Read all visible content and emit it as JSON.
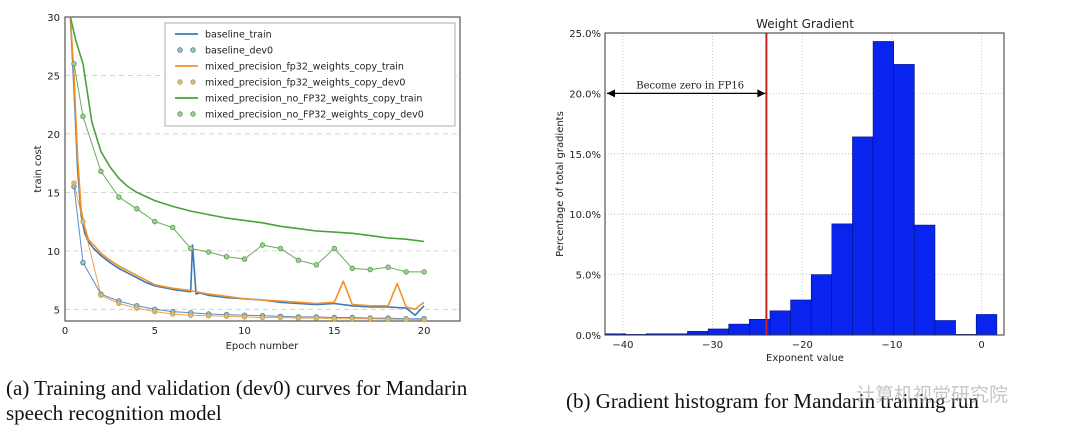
{
  "chart_data": [
    {
      "type": "line",
      "title": "",
      "xlabel": "Epoch number",
      "ylabel": "train cost",
      "xlim": [
        0,
        22
      ],
      "ylim": [
        4,
        30
      ],
      "xticks": [
        0,
        5,
        10,
        15,
        20
      ],
      "yticks": [
        5,
        10,
        15,
        20,
        25,
        30
      ],
      "grid": "horizontal-dashed",
      "legend_position": "top-right",
      "series": [
        {
          "name": "baseline_train",
          "kind": "line",
          "color": "#3b78b8",
          "x": [
            0.3,
            0.5,
            0.7,
            0.9,
            1.1,
            1.3,
            1.6,
            2,
            2.5,
            3,
            3.5,
            4,
            4.5,
            5,
            6,
            7,
            7.1,
            7.3,
            7.5,
            8,
            9,
            10,
            11,
            12,
            13,
            14,
            15,
            16,
            17,
            18,
            19,
            19.5,
            20
          ],
          "y": [
            30,
            24,
            17,
            13,
            11.5,
            10.8,
            10.2,
            9.6,
            9,
            8.5,
            8.1,
            7.7,
            7.3,
            7,
            6.7,
            6.5,
            10.5,
            6.3,
            6.4,
            6.2,
            6,
            5.9,
            5.8,
            5.6,
            5.5,
            5.4,
            5.5,
            5.3,
            5.2,
            5.2,
            5.1,
            4.5,
            5.3
          ]
        },
        {
          "name": "baseline_dev0",
          "kind": "markers",
          "color": "#3b78b8",
          "x": [
            0.5,
            1,
            2,
            3,
            4,
            5,
            6,
            7,
            8,
            9,
            10,
            11,
            12,
            13,
            14,
            15,
            16,
            17,
            18,
            19,
            20
          ],
          "y": [
            15.5,
            9,
            6.3,
            5.7,
            5.3,
            5.0,
            4.8,
            4.7,
            4.6,
            4.55,
            4.5,
            4.45,
            4.4,
            4.35,
            4.35,
            4.3,
            4.3,
            4.25,
            4.25,
            4.2,
            4.2
          ]
        },
        {
          "name": "mixed_precision_fp32_weights_copy_train",
          "kind": "line",
          "color": "#f0922a",
          "x": [
            0.3,
            0.5,
            0.7,
            0.9,
            1.1,
            1.3,
            1.6,
            2,
            2.5,
            3,
            3.5,
            4,
            4.5,
            5,
            6,
            7,
            8,
            9,
            10,
            11,
            12,
            13,
            14,
            15,
            15.5,
            16,
            17,
            18,
            18.5,
            19,
            19.5,
            20
          ],
          "y": [
            30,
            25,
            18,
            13.5,
            12,
            11,
            10.5,
            9.8,
            9.2,
            8.7,
            8.3,
            7.9,
            7.5,
            7.1,
            6.8,
            6.6,
            6.3,
            6.1,
            5.9,
            5.8,
            5.7,
            5.6,
            5.5,
            5.6,
            7.4,
            5.4,
            5.3,
            5.3,
            7.2,
            5.2,
            5.0,
            5.6
          ]
        },
        {
          "name": "mixed_precision_fp32_weights_copy_dev0",
          "kind": "markers",
          "color": "#f0922a",
          "x": [
            0.5,
            1,
            2,
            3,
            4,
            5,
            6,
            7,
            8,
            9,
            10,
            11,
            12,
            13,
            14,
            15,
            16,
            17,
            18,
            19,
            20
          ],
          "y": [
            15.8,
            12.5,
            6.2,
            5.5,
            5.1,
            4.8,
            4.6,
            4.5,
            4.45,
            4.4,
            4.35,
            4.3,
            4.3,
            4.25,
            4.25,
            4.2,
            4.2,
            4.2,
            4.15,
            4.15,
            4.1
          ]
        },
        {
          "name": "mixed_precision_no_FP32_weights_copy_train",
          "kind": "line",
          "color": "#4aa03c",
          "x": [
            0.3,
            0.6,
            1,
            1.5,
            2,
            2.5,
            3,
            3.5,
            4,
            5,
            6,
            7,
            8,
            9,
            10,
            11,
            12,
            13,
            14,
            15,
            16,
            17,
            18,
            19,
            20
          ],
          "y": [
            30,
            28,
            26,
            21,
            18.5,
            17.2,
            16.2,
            15.5,
            15,
            14.3,
            13.8,
            13.4,
            13.1,
            12.8,
            12.6,
            12.4,
            12.1,
            11.9,
            11.7,
            11.6,
            11.5,
            11.3,
            11.1,
            11.0,
            10.8
          ]
        },
        {
          "name": "mixed_precision_no_FP32_weights_copy_dev0",
          "kind": "markers",
          "color": "#4aa03c",
          "x": [
            0.5,
            1,
            2,
            3,
            4,
            5,
            6,
            7,
            8,
            9,
            10,
            11,
            12,
            13,
            14,
            15,
            16,
            17,
            18,
            19,
            20
          ],
          "y": [
            26,
            21.5,
            16.8,
            14.6,
            13.6,
            12.5,
            12,
            10.2,
            9.9,
            9.5,
            9.3,
            10.5,
            10.2,
            9.2,
            8.8,
            10.2,
            8.5,
            8.4,
            8.6,
            8.2,
            8.2
          ]
        }
      ]
    },
    {
      "type": "bar",
      "title": "Weight Gradient",
      "xlabel": "Exponent value",
      "ylabel": "Percentage of total gradients",
      "xlim": [
        -42,
        2.5
      ],
      "ylim": [
        0,
        25
      ],
      "xticks": [
        "−40",
        "−30",
        "−20",
        "−10",
        "0"
      ],
      "yticks": [
        "0.0%",
        "5.0%",
        "10.0%",
        "15.0%",
        "20.0%",
        "25.0%"
      ],
      "grid": "dotted",
      "bar_color": "#0a24f0",
      "bin_width": 2.3,
      "bins": [
        {
          "left": -42,
          "value": 0.1
        },
        {
          "left": -39.7,
          "value": 0.05
        },
        {
          "left": -37.4,
          "value": 0.1
        },
        {
          "left": -35.1,
          "value": 0.1
        },
        {
          "left": -32.8,
          "value": 0.3
        },
        {
          "left": -30.5,
          "value": 0.5
        },
        {
          "left": -28.2,
          "value": 0.9
        },
        {
          "left": -25.9,
          "value": 1.3
        },
        {
          "left": -23.6,
          "value": 2.0
        },
        {
          "left": -21.3,
          "value": 2.9
        },
        {
          "left": -19,
          "value": 5.0
        },
        {
          "left": -16.7,
          "value": 9.2
        },
        {
          "left": -14.4,
          "value": 16.4
        },
        {
          "left": -12.1,
          "value": 24.3
        },
        {
          "left": -9.8,
          "value": 22.4
        },
        {
          "left": -7.5,
          "value": 9.1
        },
        {
          "left": -5.2,
          "value": 1.2
        },
        {
          "left": -2.9,
          "value": 0.05
        },
        {
          "left": -0.6,
          "value": 1.7
        }
      ],
      "fp16_threshold": -24,
      "threshold_color": "#cc2222",
      "annotation": "Become zero in FP16"
    }
  ],
  "captions": {
    "a_line1": "(a) Training and validation (dev0) curves for Mandarin",
    "a_line2": "speech recognition model",
    "b_line1": "(b) Gradient histogram for Mandarin training run"
  },
  "watermark": "计算机视觉研究院"
}
